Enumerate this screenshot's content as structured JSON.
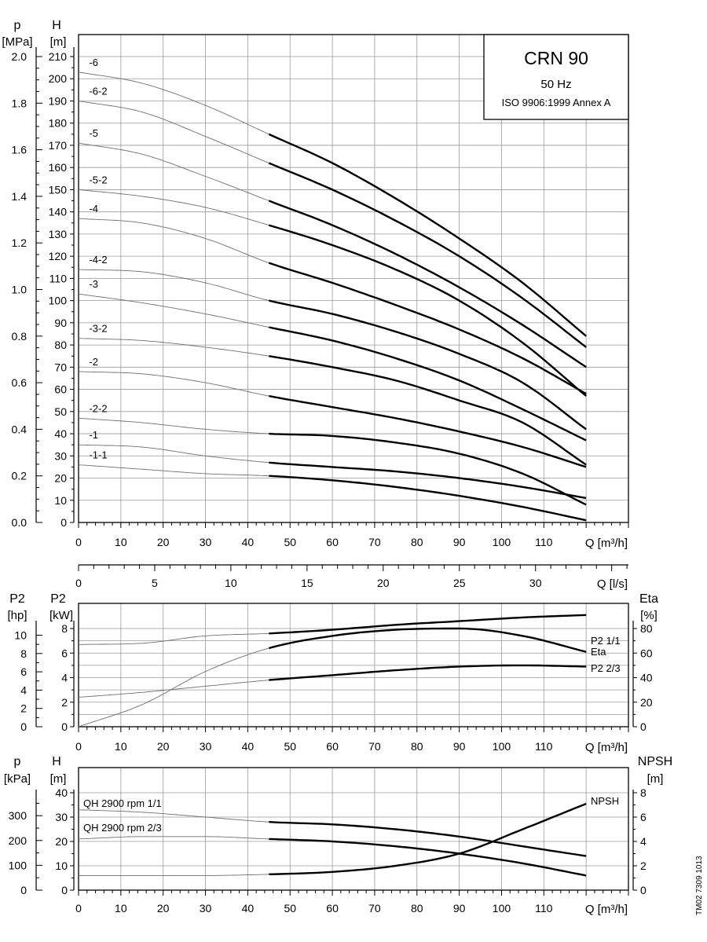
{
  "chart_data": [
    {
      "panel": "head",
      "type": "line",
      "title": "CRN 90",
      "subtitle": "50 Hz",
      "standard": "ISO 9906:1999 Annex A",
      "left_axis_1": {
        "symbol": "p",
        "unit": "[MPa]",
        "ticks": [
          "0.0",
          "0.2",
          "0.4",
          "0.6",
          "0.8",
          "1.0",
          "1.2",
          "1.4",
          "1.6",
          "1.8",
          "2.0"
        ],
        "ylim": [
          0,
          2.0
        ]
      },
      "left_axis_2": {
        "symbol": "H",
        "unit": "[m]",
        "ticks": [
          "0",
          "10",
          "20",
          "30",
          "40",
          "50",
          "60",
          "70",
          "80",
          "90",
          "100",
          "110",
          "120",
          "130",
          "140",
          "150",
          "160",
          "170",
          "180",
          "190",
          "200",
          "210"
        ],
        "ylim": [
          0,
          210
        ]
      },
      "x_axis": {
        "label": "Q [m³/h]",
        "ticks": [
          "0",
          "10",
          "20",
          "30",
          "40",
          "50",
          "60",
          "70",
          "80",
          "90",
          "100",
          "110"
        ],
        "xlim": [
          0,
          130
        ]
      },
      "series": [
        {
          "name": "-6",
          "x": [
            0,
            15,
            30,
            45,
            60,
            75,
            90,
            105,
            120
          ],
          "y": [
            203,
            198,
            188,
            175,
            162,
            146,
            128,
            108,
            84
          ]
        },
        {
          "name": "-6-2",
          "x": [
            0,
            15,
            30,
            45,
            60,
            75,
            90,
            105,
            120
          ],
          "y": [
            190,
            185,
            174,
            162,
            150,
            136,
            120,
            101,
            79
          ]
        },
        {
          "name": "-5",
          "x": [
            0,
            15,
            30,
            45,
            60,
            75,
            90,
            105,
            120
          ],
          "y": [
            171,
            166,
            156,
            145,
            134,
            121,
            106,
            89,
            70
          ]
        },
        {
          "name": "-5-2",
          "x": [
            0,
            15,
            30,
            45,
            60,
            75,
            90,
            105,
            120
          ],
          "y": [
            150,
            147,
            142,
            134,
            125,
            114,
            100,
            81,
            57
          ]
        },
        {
          "name": "-4",
          "x": [
            0,
            15,
            30,
            45,
            60,
            75,
            90,
            105,
            120
          ],
          "y": [
            137,
            135,
            128,
            117,
            108,
            98,
            87,
            74,
            58
          ]
        },
        {
          "name": "-4-2",
          "x": [
            0,
            15,
            30,
            45,
            60,
            75,
            90,
            105,
            120
          ],
          "y": [
            114,
            113,
            108,
            100,
            94,
            86,
            76,
            63,
            42
          ]
        },
        {
          "name": "-3",
          "x": [
            0,
            15,
            30,
            45,
            60,
            75,
            90,
            105,
            120
          ],
          "y": [
            103,
            99,
            94,
            88,
            82,
            74,
            64,
            51,
            37
          ]
        },
        {
          "name": "-3-2",
          "x": [
            0,
            15,
            30,
            45,
            60,
            75,
            90,
            105,
            120
          ],
          "y": [
            83,
            82,
            79,
            75,
            70,
            64,
            55,
            45,
            26
          ]
        },
        {
          "name": "-2",
          "x": [
            0,
            15,
            30,
            45,
            60,
            75,
            90,
            105,
            120
          ],
          "y": [
            68,
            67,
            63,
            57,
            52,
            47,
            41,
            34,
            25
          ]
        },
        {
          "name": "-2-2",
          "x": [
            0,
            15,
            30,
            45,
            60,
            75,
            90,
            105,
            120
          ],
          "y": [
            47,
            45,
            42,
            40,
            39,
            36,
            31,
            22,
            8
          ]
        },
        {
          "name": "-1",
          "x": [
            0,
            15,
            30,
            45,
            60,
            75,
            90,
            105,
            120
          ],
          "y": [
            35,
            34,
            30,
            27,
            25,
            23,
            20,
            16,
            11
          ]
        },
        {
          "name": "-1-1",
          "x": [
            0,
            15,
            30,
            45,
            60,
            75,
            90,
            105,
            120
          ],
          "y": [
            26,
            24,
            22,
            21,
            19,
            16,
            12,
            7,
            1
          ]
        }
      ]
    },
    {
      "panel": "flow_ls",
      "type": "axis",
      "x_axis": {
        "label": "Q [l/s]",
        "ticks": [
          "0",
          "5",
          "10",
          "15",
          "20",
          "25",
          "30"
        ],
        "xlim": [
          0,
          36.1
        ]
      }
    },
    {
      "panel": "power_efficiency",
      "type": "line",
      "left_axis_1": {
        "symbol": "P2",
        "unit": "[hp]",
        "ticks": [
          "0",
          "2",
          "4",
          "6",
          "8",
          "10"
        ],
        "ylim": [
          0,
          10
        ]
      },
      "left_axis_2": {
        "symbol": "P2",
        "unit": "[kW]",
        "ticks": [
          "0",
          "2",
          "4",
          "6",
          "8"
        ],
        "ylim": [
          0,
          8
        ]
      },
      "right_axis": {
        "symbol": "Eta",
        "unit": "[%]",
        "ticks": [
          "0",
          "20",
          "40",
          "60",
          "80"
        ],
        "ylim": [
          0,
          80
        ]
      },
      "x_axis": {
        "label": "Q [m³/h]",
        "ticks": [
          "0",
          "10",
          "20",
          "30",
          "40",
          "50",
          "60",
          "70",
          "80",
          "90",
          "100",
          "110"
        ],
        "xlim": [
          0,
          130
        ]
      },
      "series": [
        {
          "name": "P2 1/1",
          "x": [
            0,
            15,
            30,
            45,
            60,
            75,
            90,
            105,
            120
          ],
          "y": [
            6.7,
            6.8,
            7.4,
            7.6,
            7.9,
            8.3,
            8.6,
            8.9,
            9.1
          ]
        },
        {
          "name": "Eta",
          "x": [
            0,
            15,
            30,
            45,
            60,
            75,
            90,
            105,
            120
          ],
          "y": [
            0,
            18,
            45,
            64,
            74,
            79,
            80,
            74,
            61
          ]
        },
        {
          "name": "P2 2/3",
          "x": [
            0,
            15,
            30,
            45,
            60,
            75,
            90,
            105,
            120
          ],
          "y": [
            2.4,
            2.8,
            3.3,
            3.8,
            4.2,
            4.6,
            4.9,
            5.0,
            4.9
          ]
        }
      ]
    },
    {
      "panel": "npsh",
      "type": "line",
      "left_axis_1": {
        "symbol": "p",
        "unit": "[kPa]",
        "ticks": [
          "0",
          "100",
          "200",
          "300"
        ],
        "ylim": [
          0,
          300
        ]
      },
      "left_axis_2": {
        "symbol": "H",
        "unit": "[m]",
        "ticks": [
          "0",
          "10",
          "20",
          "30",
          "40"
        ],
        "ylim": [
          0,
          40
        ]
      },
      "right_axis": {
        "symbol": "NPSH",
        "unit": "[m]",
        "ticks": [
          "0",
          "2",
          "4",
          "6",
          "8"
        ],
        "ylim": [
          0,
          8
        ]
      },
      "x_axis": {
        "label": "Q [m³/h]",
        "ticks": [
          "0",
          "10",
          "20",
          "30",
          "40",
          "50",
          "60",
          "70",
          "80",
          "90",
          "100",
          "110"
        ],
        "xlim": [
          0,
          130
        ]
      },
      "series": [
        {
          "name": "QH 2900 rpm 1/1",
          "x": [
            0,
            15,
            30,
            45,
            60,
            75,
            90,
            105,
            120
          ],
          "y": [
            33,
            32,
            30,
            28,
            27,
            25,
            22,
            18,
            14
          ]
        },
        {
          "name": "QH 2900 rpm 2/3",
          "x": [
            0,
            15,
            30,
            45,
            60,
            75,
            90,
            105,
            120
          ],
          "y": [
            21,
            22,
            22,
            21,
            20,
            18,
            15,
            11,
            6
          ]
        },
        {
          "name": "NPSH",
          "x": [
            0,
            15,
            30,
            45,
            60,
            75,
            90,
            105,
            120
          ],
          "y": [
            1.2,
            1.2,
            1.2,
            1.3,
            1.5,
            2.0,
            3.0,
            5.0,
            7.1
          ]
        }
      ]
    }
  ],
  "watermark": "TM02 7309 1013"
}
